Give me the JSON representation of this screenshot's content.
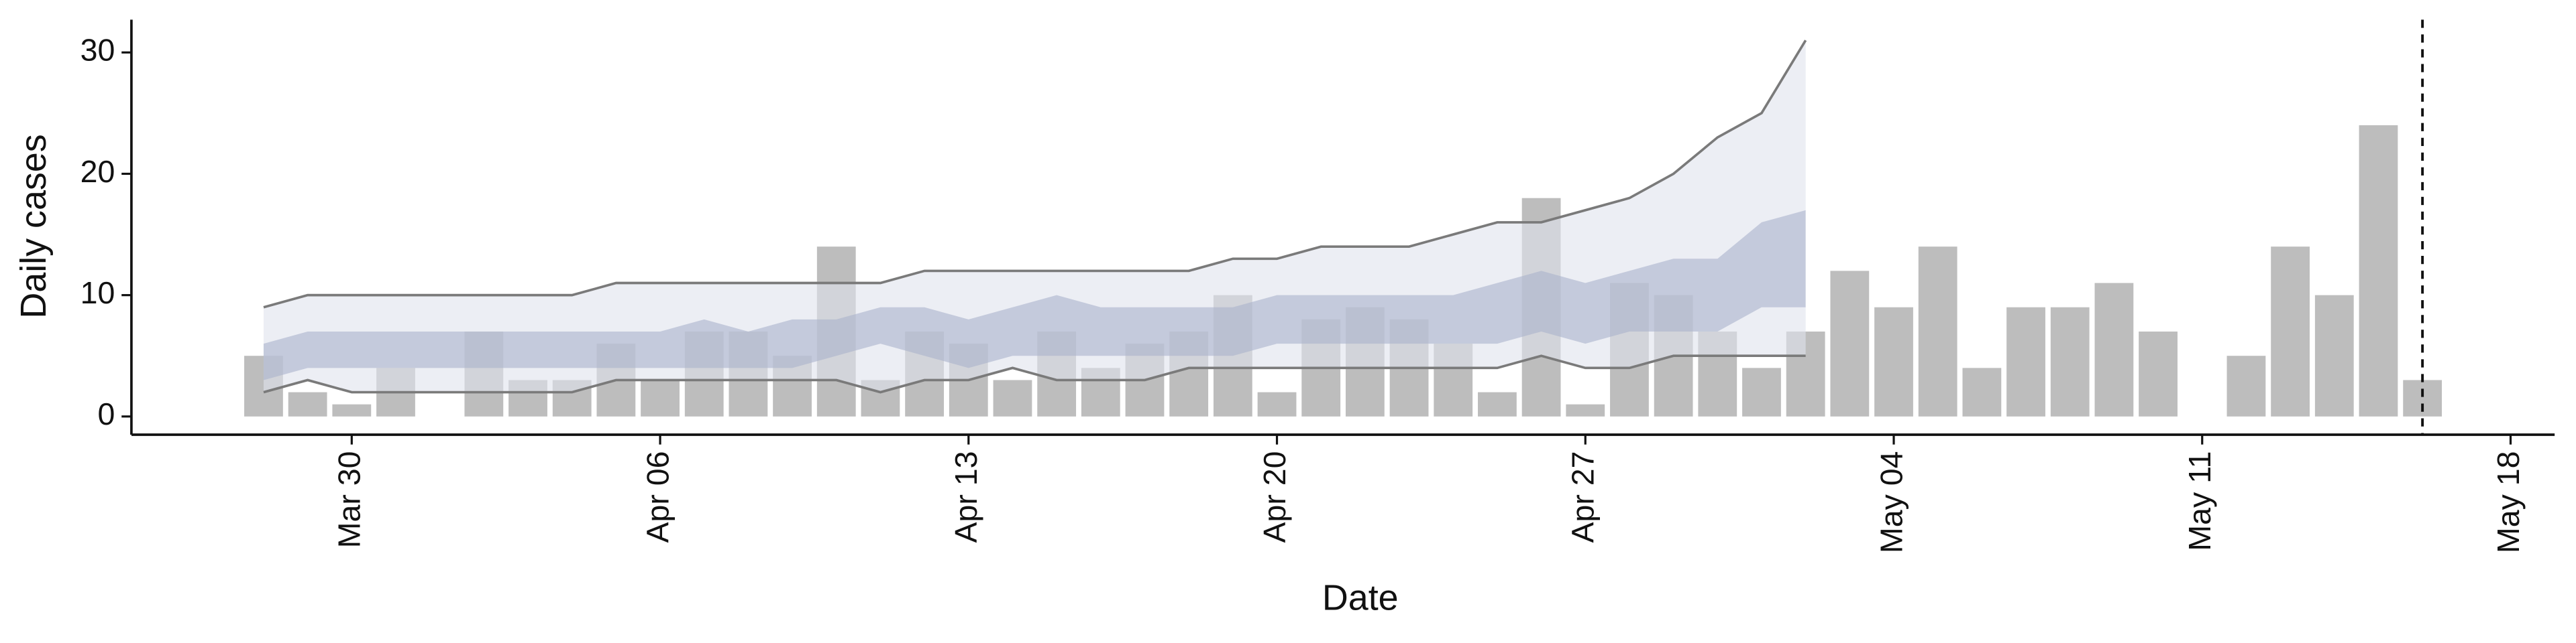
{
  "chart_data": {
    "type": "bar",
    "x_label": "Date",
    "y_label": "Daily cases",
    "x": [
      "Mar 28",
      "Mar 29",
      "Mar 30",
      "Mar 31",
      "Apr 01",
      "Apr 02",
      "Apr 03",
      "Apr 04",
      "Apr 05",
      "Apr 06",
      "Apr 07",
      "Apr 08",
      "Apr 09",
      "Apr 10",
      "Apr 11",
      "Apr 12",
      "Apr 13",
      "Apr 14",
      "Apr 15",
      "Apr 16",
      "Apr 17",
      "Apr 18",
      "Apr 19",
      "Apr 20",
      "Apr 21",
      "Apr 22",
      "Apr 23",
      "Apr 24",
      "Apr 25",
      "Apr 26",
      "Apr 27",
      "Apr 28",
      "Apr 29",
      "Apr 30",
      "May 01",
      "May 02",
      "May 03",
      "May 04",
      "May 05",
      "May 06",
      "May 07",
      "May 08",
      "May 09",
      "May 10",
      "May 11",
      "May 12",
      "May 13",
      "May 14",
      "May 15",
      "May 16"
    ],
    "values": [
      5,
      2,
      1,
      4,
      0,
      7,
      3,
      3,
      6,
      3,
      7,
      7,
      5,
      14,
      3,
      7,
      6,
      3,
      7,
      4,
      6,
      7,
      10,
      2,
      8,
      9,
      8,
      6,
      2,
      18,
      1,
      11,
      10,
      7,
      4,
      7,
      12,
      9,
      14,
      4,
      9,
      9,
      11,
      7,
      0,
      5,
      14,
      10,
      24,
      3
    ],
    "color": "#bdbdbd",
    "forecast_x": [
      "Mar 28",
      "Mar 29",
      "Mar 30",
      "Mar 31",
      "Apr 01",
      "Apr 02",
      "Apr 03",
      "Apr 04",
      "Apr 05",
      "Apr 06",
      "Apr 07",
      "Apr 08",
      "Apr 09",
      "Apr 10",
      "Apr 11",
      "Apr 12",
      "Apr 13",
      "Apr 14",
      "Apr 15",
      "Apr 16",
      "Apr 17",
      "Apr 18",
      "Apr 19",
      "Apr 20",
      "Apr 21",
      "Apr 22",
      "Apr 23",
      "Apr 24",
      "Apr 25",
      "Apr 26",
      "Apr 27",
      "Apr 28",
      "Apr 29",
      "Apr 30",
      "May 01",
      "May 02"
    ],
    "bands": [
      {
        "color": "#dfe2ec",
        "lower": [
          2,
          3,
          2,
          2,
          2,
          2,
          2,
          2,
          3,
          3,
          3,
          3,
          3,
          3,
          2,
          3,
          3,
          4,
          3,
          3,
          3,
          4,
          4,
          4,
          4,
          4,
          4,
          4,
          4,
          5,
          4,
          4,
          5,
          5,
          5,
          5
        ],
        "upper": [
          9,
          10,
          10,
          10,
          10,
          10,
          10,
          10,
          11,
          11,
          11,
          11,
          11,
          11,
          11,
          12,
          12,
          12,
          12,
          12,
          12,
          12,
          13,
          13,
          14,
          14,
          14,
          15,
          16,
          16,
          17,
          18,
          20,
          23,
          25,
          31
        ]
      },
      {
        "color": "#aab2cc",
        "lower": [
          3,
          4,
          4,
          4,
          4,
          4,
          4,
          4,
          4,
          4,
          4,
          4,
          4,
          5,
          6,
          5,
          4,
          5,
          5,
          5,
          5,
          5,
          5,
          6,
          6,
          6,
          6,
          6,
          6,
          7,
          6,
          7,
          7,
          7,
          9,
          9
        ],
        "upper": [
          6,
          7,
          7,
          7,
          7,
          7,
          7,
          7,
          7,
          7,
          8,
          7,
          8,
          8,
          9,
          9,
          8,
          9,
          10,
          9,
          9,
          9,
          9,
          10,
          10,
          10,
          10,
          10,
          11,
          12,
          11,
          12,
          13,
          13,
          16,
          17
        ]
      }
    ],
    "line_color": "#7a7a7a",
    "vline": "May 16",
    "xlim": [
      "Mar 25",
      "May 19"
    ],
    "xticks": [
      "Mar 30",
      "Apr 06",
      "Apr 13",
      "Apr 20",
      "Apr 27",
      "May 04",
      "May 11",
      "May 18"
    ],
    "ylim": [
      -1.5,
      32.7
    ],
    "yticks": [
      0,
      10,
      20,
      30
    ]
  }
}
